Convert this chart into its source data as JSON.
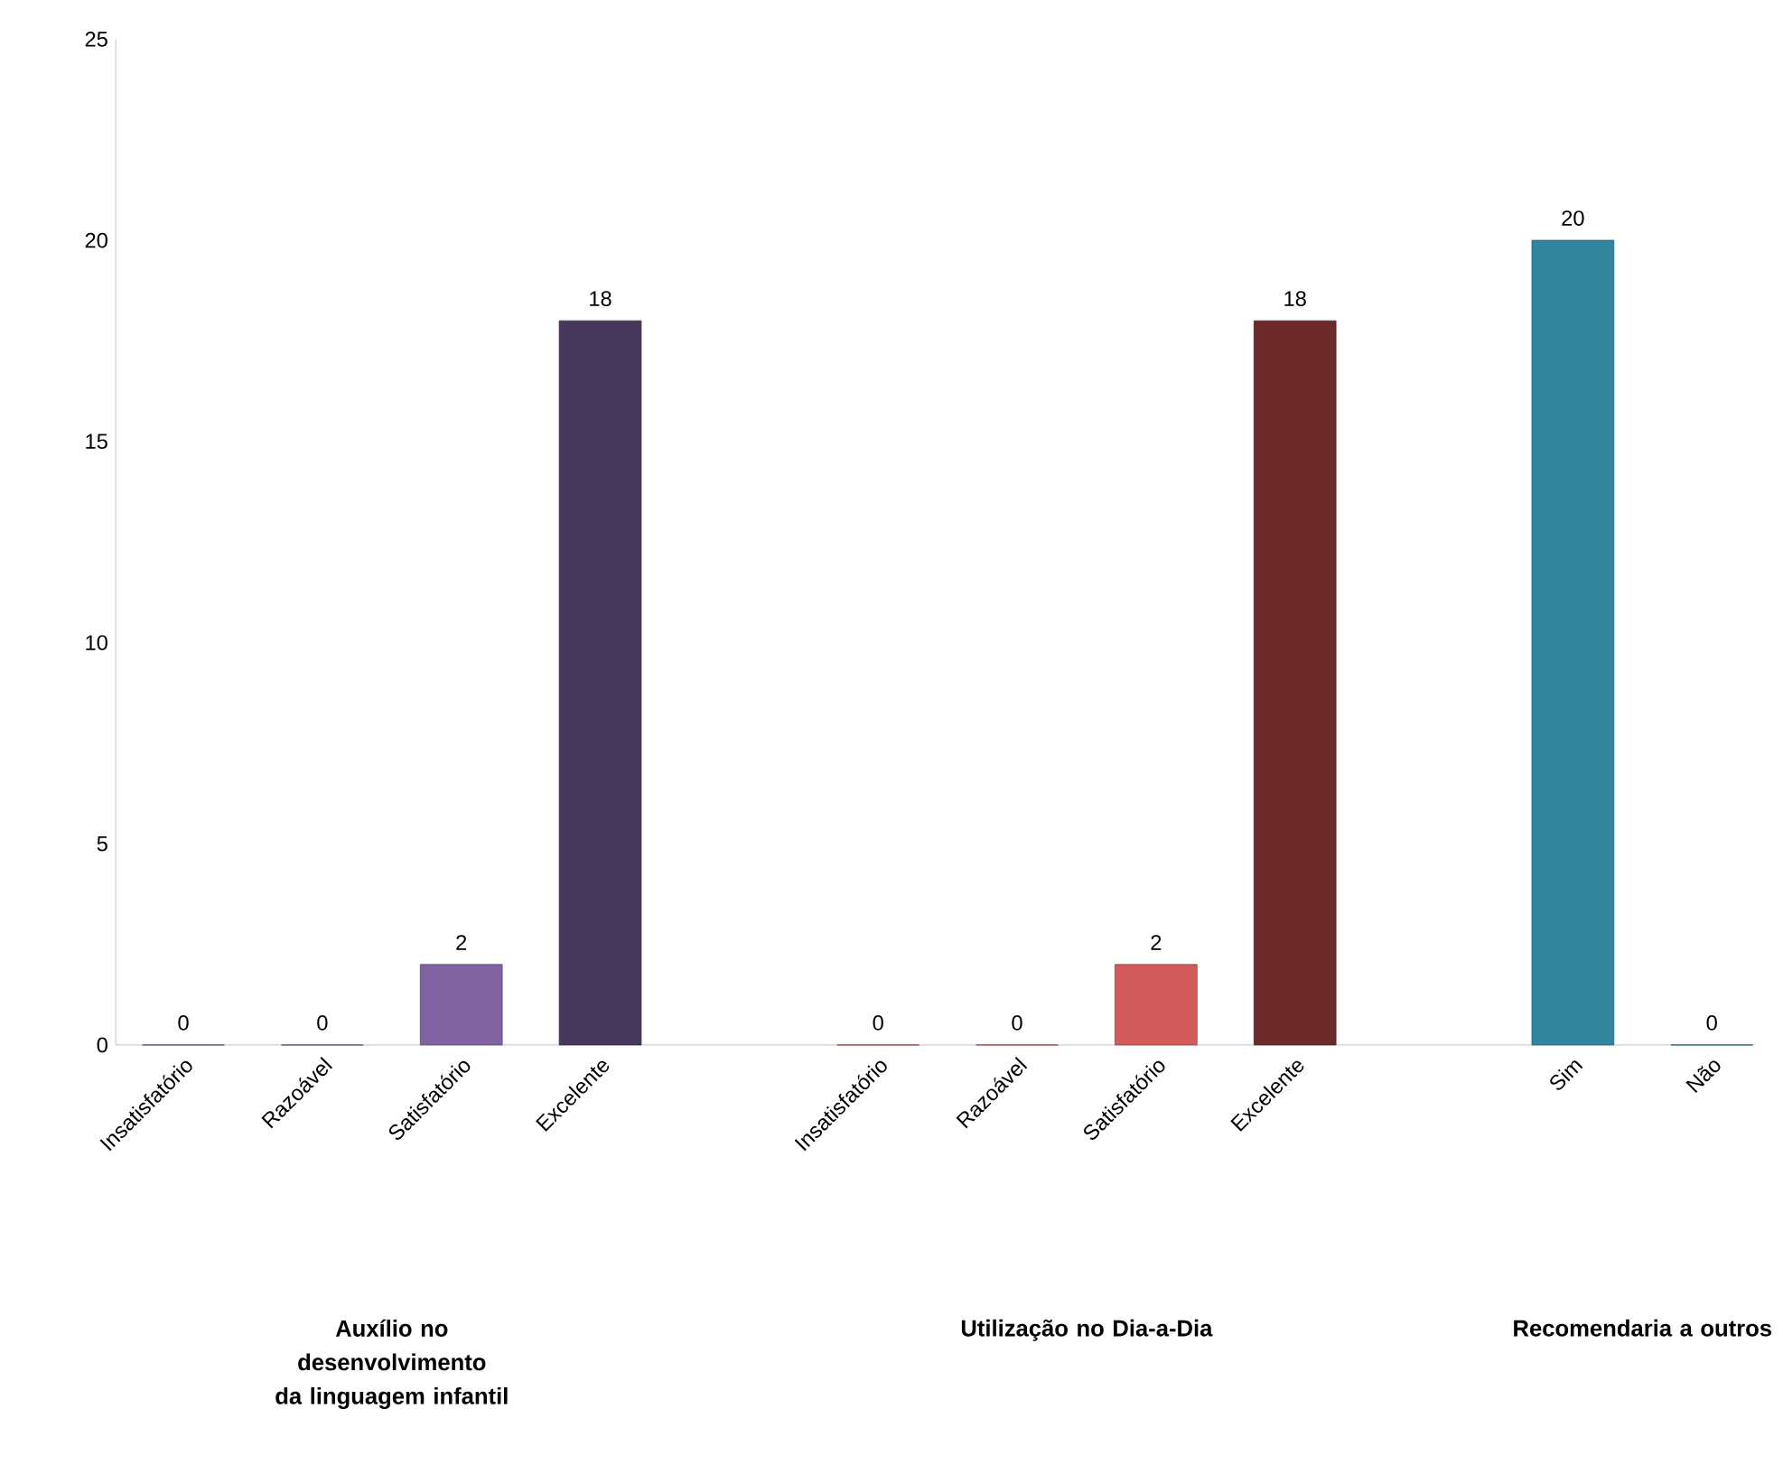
{
  "chart_data": {
    "type": "bar",
    "categories": [
      "Insatisfatório",
      "Razoável",
      "Satisfatório",
      "Excelente",
      null,
      "Insatisfatório",
      "Razoável",
      "Satisfatório",
      "Excelente",
      null,
      "Sim",
      "Não"
    ],
    "values": [
      0,
      0,
      2,
      18,
      null,
      0,
      0,
      2,
      18,
      null,
      20,
      0
    ],
    "colors": [
      "#8064a2",
      "#8064a2",
      "#8064a2",
      "#46385a",
      null,
      "#d25c5c",
      "#d25c5c",
      "#d25c5c",
      "#6b2929",
      null,
      "#31859c",
      "#31859c"
    ],
    "ylim": [
      0,
      25
    ],
    "yticks": [
      0,
      5,
      10,
      15,
      20,
      25
    ],
    "grid": false,
    "data_labels": true,
    "annotations": [
      "**Auxílio no desenvolvimento da linguagem infantil**",
      "**Utilização no Dia-a-Dia**",
      "**Recomendaria a outros**"
    ]
  }
}
